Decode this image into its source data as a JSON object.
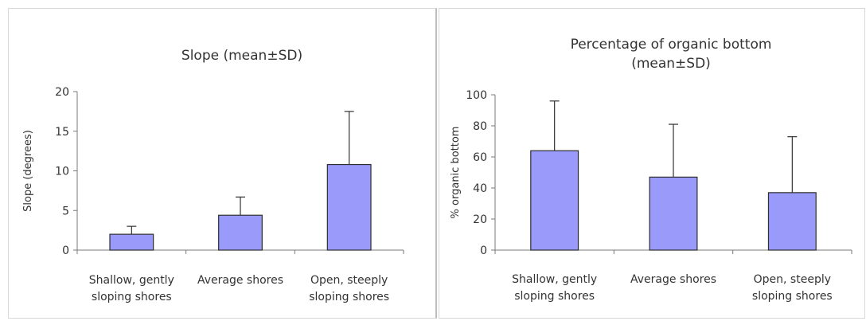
{
  "chart_data": [
    {
      "type": "bar",
      "title_lines": [
        "Slope (mean±SD)"
      ],
      "xlabel": "",
      "ylabel": "Slope (degrees)",
      "ylim": [
        0,
        20
      ],
      "yticks": [
        0,
        5,
        10,
        15,
        20
      ],
      "categories": [
        [
          "Shallow, gently",
          "sloping shores"
        ],
        [
          "Average shores"
        ],
        [
          "Open, steeply",
          "sloping shores"
        ]
      ],
      "values": [
        2.0,
        4.4,
        10.8
      ],
      "error_plus": [
        1.0,
        2.3,
        6.7
      ],
      "bar_color": "#9a9afa",
      "grid": false,
      "legend": "none"
    },
    {
      "type": "bar",
      "title_lines": [
        "Percentage of organic bottom",
        "(mean±SD)"
      ],
      "xlabel": "",
      "ylabel": "% organic bottom",
      "ylim": [
        0,
        100
      ],
      "yticks": [
        0,
        20,
        40,
        60,
        80,
        100
      ],
      "categories": [
        [
          "Shallow, gently",
          "sloping shores"
        ],
        [
          "Average shores"
        ],
        [
          "Open, steeply",
          "sloping shores"
        ]
      ],
      "values": [
        64,
        47,
        37
      ],
      "error_plus": [
        32,
        34,
        36
      ],
      "bar_color": "#9a9afa",
      "grid": false,
      "legend": "none"
    }
  ]
}
